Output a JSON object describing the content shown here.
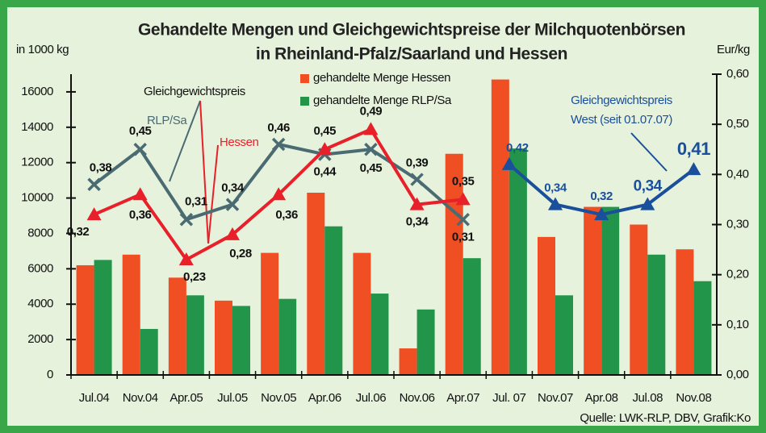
{
  "chart_data": {
    "type": "bar_line",
    "title": [
      "Gehandelte Mengen und Gleichgewichtspreise der Milchquotenbörsen",
      "in Rheinland-Pfalz/Saarland und Hessen"
    ],
    "y_label": "in 1000 kg",
    "y2_label": "Eur/kg",
    "source": "Quelle: LWK-RLP, DBV, Grafik:Ko",
    "categories": [
      "Jul.04",
      "Nov.04",
      "Apr.05",
      "Jul.05",
      "Nov.05",
      "Apr.06",
      "Jul.06",
      "Nov.06",
      "Apr.07",
      "Jul. 07",
      "Nov.07",
      "Apr.08",
      "Jul.08",
      "Nov.08"
    ],
    "series": [
      {
        "name": "gehandelte Menge Hessen",
        "color": "#f04e23",
        "values": [
          6200,
          6800,
          5500,
          4200,
          6900,
          10300,
          6900,
          1500,
          12500,
          16700,
          7800,
          9500,
          8500,
          7100
        ]
      },
      {
        "name": "gehandelte Menge RLP/Sa",
        "color": "#23954a",
        "values": [
          6500,
          2600,
          4500,
          3900,
          4300,
          8400,
          4600,
          3700,
          6600,
          12800,
          4500,
          9500,
          6800,
          5300
        ]
      }
    ],
    "lines": [
      {
        "color": "#4b6b72",
        "axis": "y2",
        "marker": "x",
        "values": [
          0.38,
          0.45,
          0.31,
          0.34,
          0.46,
          0.44,
          0.45,
          0.39,
          0.31,
          null,
          null,
          null,
          null,
          null
        ],
        "value_labels": [
          "0,38",
          "0,45",
          "0,31",
          "0,34",
          "0,46",
          "0,44",
          "0,45",
          "0,39",
          "0,31",
          null,
          null,
          null,
          null,
          null
        ]
      },
      {
        "color": "#e8202a",
        "axis": "y2",
        "marker": "triangle",
        "values": [
          0.32,
          0.36,
          0.23,
          0.28,
          0.36,
          0.45,
          0.49,
          0.34,
          0.35,
          null,
          null,
          null,
          null,
          null
        ],
        "value_labels": [
          "0,32",
          "0,36",
          "0,23",
          "0,28",
          "0,36",
          "0,45",
          "0,49",
          "0,34",
          "0,35",
          null,
          null,
          null,
          null,
          null
        ]
      },
      {
        "color": "#1a4f9c",
        "axis": "y2",
        "marker": "triangle",
        "values": [
          null,
          null,
          null,
          null,
          null,
          null,
          null,
          null,
          null,
          0.42,
          0.34,
          0.32,
          0.34,
          0.41
        ],
        "value_labels": [
          null,
          null,
          null,
          null,
          null,
          null,
          null,
          null,
          null,
          "0,42",
          "0,34",
          "0,32",
          "0,34",
          "0,41"
        ]
      }
    ],
    "annotations": {
      "gleichgewichtspreis": "Gleichgewichtspreis",
      "rlp": "RLP/Sa",
      "hessen": "Hessen",
      "west": [
        "Gleichgewichtspreis",
        "West (seit 01.07.07)"
      ]
    },
    "ylim": [
      0,
      17000
    ],
    "yticks": [
      0,
      2000,
      4000,
      6000,
      8000,
      10000,
      12000,
      14000,
      16000
    ],
    "y2lim": [
      0,
      0.6
    ],
    "y2ticks": [
      {
        "value": 0,
        "label": "0,00"
      },
      {
        "value": 0.1,
        "label": "0,10"
      },
      {
        "value": 0.2,
        "label": "0,20"
      },
      {
        "value": 0.3,
        "label": "0,30"
      },
      {
        "value": 0.4,
        "label": "0,40"
      },
      {
        "value": 0.5,
        "label": "0,50"
      },
      {
        "value": 0.6,
        "label": "0,60"
      }
    ]
  }
}
